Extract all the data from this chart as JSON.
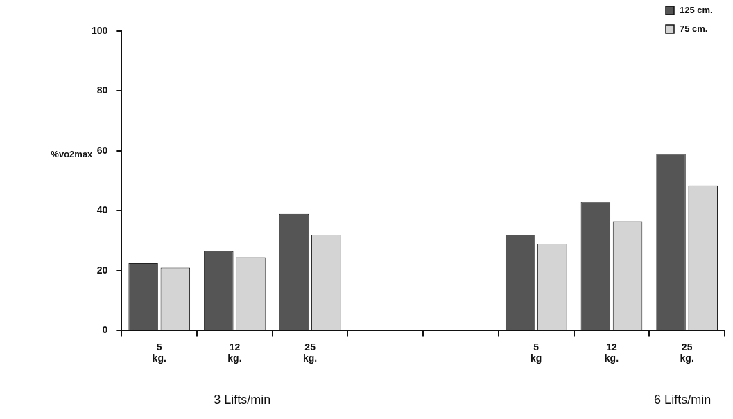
{
  "chart_data": {
    "type": "bar",
    "ylabel": "%vo2max",
    "categories": [
      "5\nkg.",
      "12\nkg.",
      "25\nkg.",
      null,
      null,
      "5\nkg",
      "12\nkg.",
      "25\nkg."
    ],
    "series": [
      {
        "name": "125 cm.",
        "color": "#555555",
        "values": [
          22.5,
          26.5,
          39,
          null,
          null,
          32,
          43,
          59
        ]
      },
      {
        "name": "75 cm.",
        "color": "#d4d4d4",
        "values": [
          21,
          24.5,
          32,
          null,
          null,
          29,
          36.5,
          48.5
        ]
      }
    ],
    "ylim": [
      0,
      100
    ],
    "yticks": [
      0,
      20,
      40,
      60,
      80,
      100
    ],
    "grid": false,
    "legend": "top right",
    "annotations": [
      "3 Lifts/min",
      "6 Lifts/min"
    ]
  }
}
